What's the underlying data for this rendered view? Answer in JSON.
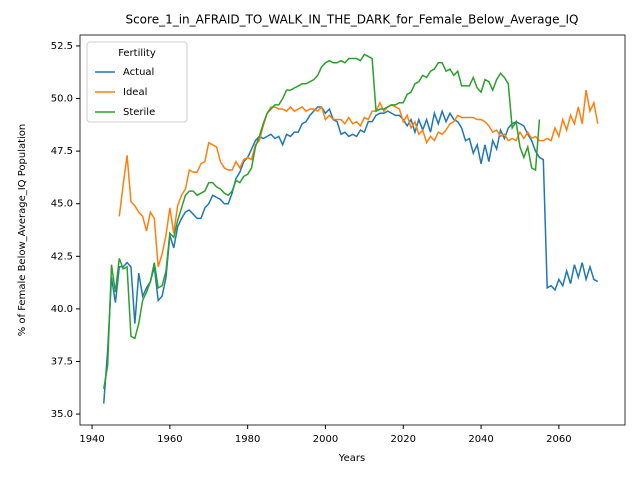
{
  "chart_data": {
    "type": "line",
    "title": "Score_1_in_AFRAID_TO_WALK_IN_THE_DARK_for_Female_Below_Average_IQ",
    "xlabel": "Years",
    "ylabel": "% of Female Below_Average_IQ Population",
    "legend_title": "Fertility",
    "legend": "upper left",
    "x": [
      1943,
      1944,
      1945,
      1946,
      1947,
      1948,
      1949,
      1950,
      1951,
      1952,
      1953,
      1954,
      1955,
      1956,
      1957,
      1958,
      1959,
      1960,
      1961,
      1962,
      1963,
      1964,
      1965,
      1966,
      1967,
      1968,
      1969,
      1970,
      1971,
      1972,
      1973,
      1974,
      1975,
      1976,
      1977,
      1978,
      1979,
      1980,
      1981,
      1982,
      1983,
      1984,
      1985,
      1986,
      1987,
      1988,
      1989,
      1990,
      1991,
      1992,
      1993,
      1994,
      1995,
      1996,
      1997,
      1998,
      1999,
      2000,
      2001,
      2002,
      2003,
      2004,
      2005,
      2006,
      2007,
      2008,
      2009,
      2010,
      2011,
      2012,
      2013,
      2014,
      2015,
      2016,
      2017,
      2018,
      2019,
      2020,
      2021,
      2022,
      2023,
      2024,
      2025,
      2026,
      2027,
      2028,
      2029,
      2030,
      2031,
      2032,
      2033,
      2034,
      2035,
      2036,
      2037,
      2038,
      2039,
      2040,
      2041,
      2042,
      2043,
      2044,
      2045,
      2046,
      2047,
      2048,
      2049,
      2050,
      2051,
      2052,
      2053,
      2054,
      2055,
      2056,
      2057,
      2058,
      2059,
      2060,
      2061,
      2062,
      2063,
      2064,
      2065,
      2066,
      2067,
      2068,
      2069,
      2070
    ],
    "series": [
      {
        "name": "Actual",
        "color": "#1f77b4",
        "values": [
          35.5,
          38,
          41.5,
          40.3,
          42,
          42,
          42.2,
          42,
          39.3,
          41.7,
          40.6,
          41,
          41.3,
          42,
          40.4,
          40.6,
          41.5,
          43.5,
          42.9,
          43.9,
          44.3,
          44.6,
          44.7,
          44.5,
          44.3,
          44.3,
          44.8,
          45,
          45.4,
          45.3,
          45.2,
          45,
          45,
          45.5,
          46.2,
          46.5,
          47,
          47.2,
          47.6,
          48,
          48.2,
          48.1,
          48.2,
          48.3,
          48.1,
          48.2,
          47.8,
          48.3,
          48.2,
          48.4,
          48.4,
          48.8,
          48.9,
          49.2,
          49.4,
          49.6,
          49.6,
          49.3,
          49.5,
          49,
          48.9,
          48.3,
          48.4,
          48.2,
          48.3,
          48.2,
          48.5,
          48.4,
          48.9,
          48.9,
          49.2,
          49.3,
          49.3,
          49.4,
          49.3,
          49.2,
          49.2,
          49,
          48.7,
          49,
          48.4,
          49,
          48.5,
          49,
          48.4,
          49.3,
          48.8,
          49.4,
          48.9,
          49.3,
          49,
          48.9,
          48.6,
          48,
          48.1,
          47.4,
          47.8,
          46.9,
          47.8,
          47,
          48,
          47.6,
          48.5,
          48.1,
          48.6,
          48.8,
          48.9,
          48.8,
          48.7,
          48.3,
          48,
          47.5,
          47.2,
          47.1,
          41,
          41.1,
          40.9,
          41.4,
          41.1,
          41.8,
          41.2,
          42.1,
          41.5,
          42.2,
          41.4,
          42,
          41.4,
          41.3
        ]
      },
      {
        "name": "Ideal",
        "color": "#ff7f0e",
        "values": [
          null,
          null,
          null,
          null,
          44.4,
          45.9,
          47.3,
          45.1,
          44.9,
          44.6,
          44.4,
          43.7,
          44.6,
          44.3,
          42,
          42.6,
          43.5,
          44.8,
          43.6,
          44.9,
          45.4,
          45.7,
          46.6,
          46.5,
          46.5,
          46.9,
          47,
          47.9,
          47.8,
          47.7,
          47,
          46.7,
          46.6,
          46.6,
          47,
          46.7,
          47.1,
          47.2,
          47.1,
          47.8,
          48,
          48.7,
          49.3,
          49.6,
          49.6,
          49.5,
          49.5,
          49.4,
          49.6,
          49.4,
          49.5,
          49.6,
          49.4,
          49.5,
          49.5,
          49.4,
          49.6,
          49,
          49.2,
          49,
          49,
          49,
          48.8,
          49.1,
          48.8,
          48.9,
          48.7,
          49.1,
          49,
          49.4,
          49.4,
          49.8,
          49.4,
          49.6,
          49.7,
          49.6,
          49.5,
          48.9,
          49.2,
          48.6,
          48.9,
          48.3,
          48.5,
          47.9,
          48.2,
          48,
          48.4,
          48.3,
          48.5,
          48.8,
          48.9,
          49.2,
          49.1,
          49.1,
          49.1,
          49.1,
          49,
          49,
          48.9,
          48.7,
          48.4,
          48.5,
          48.2,
          48.3,
          48,
          48.1,
          48,
          48.4,
          48.1,
          48.4,
          48.1,
          48.2,
          48,
          48,
          48.1,
          48,
          48.6,
          48.2,
          49,
          48.5,
          49.2,
          48.8,
          49.6,
          48.8,
          50.4,
          49.4,
          49.8,
          48.8
        ]
      },
      {
        "name": "Sterile",
        "color": "#2ca02c",
        "values": [
          36.2,
          37.3,
          42.1,
          40.8,
          42.4,
          41.9,
          42,
          38.7,
          38.6,
          39.3,
          40.4,
          40.8,
          41.3,
          42.2,
          41,
          41.1,
          41.8,
          43.6,
          43.4,
          44.2,
          44.8,
          45.4,
          45.6,
          45.6,
          45.4,
          45.5,
          45.6,
          46,
          46,
          45.8,
          45.7,
          45.5,
          45.4,
          45.6,
          46.1,
          46,
          46.3,
          46.4,
          46.7,
          47.7,
          48.2,
          48.8,
          49.3,
          49.5,
          49.7,
          49.7,
          50,
          50.4,
          50.4,
          50.5,
          50.6,
          50.7,
          50.7,
          50.8,
          50.9,
          51.1,
          51.5,
          51.7,
          51.8,
          51.7,
          51.7,
          51.8,
          51.7,
          51.9,
          51.9,
          51.9,
          51.8,
          52.1,
          52,
          51.9,
          49.4,
          49.5,
          49.5,
          49.6,
          49.7,
          49.7,
          49.8,
          49.8,
          50.2,
          50.3,
          50.7,
          50.8,
          51.1,
          51,
          51.3,
          51.4,
          51.7,
          51.7,
          51.3,
          51.4,
          51.1,
          51.3,
          50.6,
          50.6,
          50.6,
          51,
          50.5,
          50.3,
          50.9,
          50.8,
          50.4,
          50.9,
          51.2,
          51,
          50.7,
          48.6,
          48.9,
          47.7,
          47.2,
          47.7,
          46.7,
          46.6,
          49,
          null,
          null,
          null,
          null,
          null,
          null,
          null,
          null,
          null,
          null,
          null,
          null,
          null,
          null,
          null
        ]
      }
    ],
    "xlim": [
      1936.9,
      2077
    ],
    "ylim": [
      34.48,
      53.02
    ],
    "xticks": [
      1940,
      1960,
      1980,
      2000,
      2020,
      2040,
      2060
    ],
    "yticks": [
      {
        "value": 35,
        "label": "35.0"
      },
      37.5,
      {
        "value": 40,
        "label": "40.0"
      },
      42.5,
      {
        "value": 45,
        "label": "45.0"
      },
      47.5,
      {
        "value": 50,
        "label": "50.0"
      },
      52.5
    ],
    "grid": false
  }
}
